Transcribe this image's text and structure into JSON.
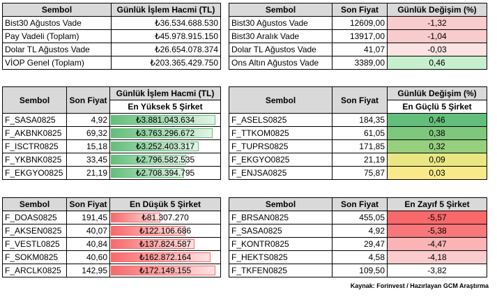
{
  "summary_left": {
    "headers": [
      "Sembol",
      "Günlük İşlem Hacmi (TL)"
    ],
    "rows": [
      [
        "Bist30 Ağustos Vade",
        "₺36.534.688.530"
      ],
      [
        "Pay Vadeli (Toplam)",
        "₺45.978.915.150"
      ],
      [
        "Dolar TL Ağustos Vade",
        "₺26.654.078.374"
      ],
      [
        "VİOP Genel (Toplam)",
        "₺203.365.429.750"
      ]
    ]
  },
  "summary_right": {
    "headers": [
      "Sembol",
      "Son Fiyat",
      "Günlük Değişim (%)"
    ],
    "rows": [
      {
        "sym": "Bist30 Ağustos Vade",
        "price": "12609,00",
        "chg": "-1,32",
        "color": "#f8cbcc"
      },
      {
        "sym": "Bist30 Aralık Vade",
        "price": "13917,00",
        "chg": "-1,04",
        "color": "#f8cbcc"
      },
      {
        "sym": "Dolar TL Ağustos Vade",
        "price": "41,07",
        "chg": "-0,03",
        "color": "#fbe2e3"
      },
      {
        "sym": "Ons Altın Ağustos Vade",
        "price": "3389,00",
        "chg": "0,46",
        "color": "#c6efce"
      }
    ]
  },
  "volume_top": {
    "headers": [
      "Sembol",
      "Son Fiyat",
      "Günlük İşlem Hacmi (TL)"
    ],
    "subheader": "En Yüksek 5 Şirket",
    "rows": [
      {
        "sym": "F_SASA0825",
        "price": "4,92",
        "vol": "₺3.881.043.634",
        "fraction": 1.0
      },
      {
        "sym": "F_AKBNK0825",
        "price": "69,32",
        "vol": "₺3.763.296.672",
        "fraction": 0.97
      },
      {
        "sym": "F_ISCTR0825",
        "price": "15,18",
        "vol": "₺3.252.403.317",
        "fraction": 0.84
      },
      {
        "sym": "F_YKBNK0825",
        "price": "33,45",
        "vol": "₺2.796.582.535",
        "fraction": 0.72
      },
      {
        "sym": "F_EKGYO0825",
        "price": "21,19",
        "vol": "₺2.708.394.795",
        "fraction": 0.7
      }
    ]
  },
  "gainers": {
    "headers": [
      "Sembol",
      "Son Fiyat",
      "Günlük Değişim (%)"
    ],
    "subheader": "En Güçlü 5 Şirket",
    "rows": [
      {
        "sym": "F_ASELS0825",
        "price": "184,35",
        "chg": "0,46",
        "color": "#63be7b"
      },
      {
        "sym": "F_TTKOM0825",
        "price": "61,05",
        "chg": "0,38",
        "color": "#7fc77c"
      },
      {
        "sym": "F_TUPRS0825",
        "price": "171,85",
        "chg": "0,32",
        "color": "#96cf7e"
      },
      {
        "sym": "F_EKGYO0825",
        "price": "21,19",
        "chg": "0,09",
        "color": "#e8e784"
      },
      {
        "sym": "F_ENJSA0825",
        "price": "75,87",
        "chg": "0,03",
        "color": "#f9e988"
      }
    ]
  },
  "volume_bottom": {
    "headers": [
      "Sembol",
      "Son Fiyat",
      "En Düşük 5 Şirket"
    ],
    "rows": [
      {
        "sym": "F_DOAS0825",
        "price": "191,45",
        "vol": "₺81.307.270",
        "fraction": 0.47
      },
      {
        "sym": "F_AKSEN0825",
        "price": "40,07",
        "vol": "₺122.106.686",
        "fraction": 0.71
      },
      {
        "sym": "F_VESTL0825",
        "price": "40,84",
        "vol": "₺137.824.587",
        "fraction": 0.8
      },
      {
        "sym": "F_SOKM0825",
        "price": "40,60",
        "vol": "₺162.872.164",
        "fraction": 0.95
      },
      {
        "sym": "F_ARCLK0825",
        "price": "142,95",
        "vol": "₺172.149.155",
        "fraction": 1.0
      }
    ]
  },
  "losers": {
    "headers": [
      "Sembol",
      "Son Fiyat",
      "En Zayıf 5 Şirket"
    ],
    "rows": [
      {
        "sym": "F_BRSAN0825",
        "price": "455,05",
        "chg": "-5,57",
        "color": "#f8696b"
      },
      {
        "sym": "F_SASA0825",
        "price": "4,92",
        "chg": "-5,38",
        "color": "#f8777a"
      },
      {
        "sym": "F_KONTR0825",
        "price": "29,47",
        "chg": "-4,47",
        "color": "#fab4b6"
      },
      {
        "sym": "F_HEKTS0825",
        "price": "4,58",
        "chg": "-4,18",
        "color": "#fbcccd"
      },
      {
        "sym": "F_TKFEN0825",
        "price": "109,50",
        "chg": "-3,82",
        "color": "#ffffff"
      }
    ]
  },
  "source": "Kaynak: Forinvest / Hazırlayan GCM Araştırma"
}
